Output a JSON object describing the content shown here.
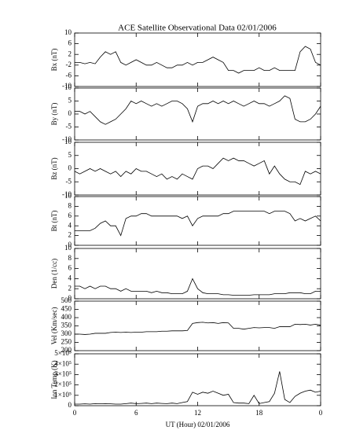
{
  "chart_data": [
    {
      "type": "line",
      "title": "ACE Satellite Observational Data   02/01/2006",
      "ylabel": "Bx (nT)",
      "color": "#000000",
      "x": [
        0,
        0.5,
        1,
        1.5,
        2,
        2.5,
        3,
        3.5,
        4,
        4.5,
        5,
        5.5,
        6,
        6.5,
        7,
        7.5,
        8,
        8.5,
        9,
        9.5,
        10,
        10.5,
        11,
        11.5,
        12,
        12.5,
        13,
        13.5,
        14,
        14.5,
        15,
        15.5,
        16,
        16.5,
        17,
        17.5,
        18,
        18.5,
        19,
        19.5,
        20,
        20.5,
        21,
        21.5,
        22,
        22.5,
        23,
        23.5,
        24
      ],
      "values": [
        -1,
        -1,
        -1.5,
        -1,
        -1.5,
        1,
        3,
        2,
        3,
        -1,
        -2,
        -1,
        0,
        -1,
        -2,
        -2,
        -1,
        -2,
        -3,
        -3,
        -2,
        -2,
        -1,
        -2,
        -1,
        -1,
        0,
        1,
        0,
        -1,
        -4,
        -4,
        -5,
        -4,
        -4,
        -4,
        -3,
        -4,
        -4,
        -3,
        -4,
        -4,
        -4,
        -4,
        3,
        5,
        4,
        -1,
        -2
      ],
      "ylim": [
        -10,
        10
      ],
      "yticks": [
        -10,
        -6,
        -2,
        2,
        6,
        10
      ]
    },
    {
      "type": "line",
      "ylabel": "By (nT)",
      "color": "#000000",
      "x": [
        0,
        0.5,
        1,
        1.5,
        2,
        2.5,
        3,
        3.5,
        4,
        4.5,
        5,
        5.5,
        6,
        6.5,
        7,
        7.5,
        8,
        8.5,
        9,
        9.5,
        10,
        10.5,
        11,
        11.5,
        12,
        12.5,
        13,
        13.5,
        14,
        14.5,
        15,
        15.5,
        16,
        16.5,
        17,
        17.5,
        18,
        18.5,
        19,
        19.5,
        20,
        20.5,
        21,
        21.5,
        22,
        22.5,
        23,
        23.5,
        24
      ],
      "values": [
        1,
        1,
        0,
        1,
        -1,
        -3,
        -4,
        -3,
        -2,
        0,
        2,
        5,
        4,
        5,
        4,
        3,
        4,
        3,
        4,
        5,
        5,
        4,
        2,
        -3,
        3,
        4,
        4,
        5,
        4,
        5,
        4,
        5,
        4,
        3,
        4,
        5,
        4,
        4,
        3,
        4,
        5,
        7,
        6,
        -2,
        -3,
        -3,
        -2,
        0,
        3
      ],
      "ylim": [
        -10,
        10
      ],
      "yticks": [
        -10,
        -5,
        0,
        5,
        10
      ]
    },
    {
      "type": "line",
      "ylabel": "Bz (nT)",
      "color": "#000000",
      "x": [
        0,
        0.5,
        1,
        1.5,
        2,
        2.5,
        3,
        3.5,
        4,
        4.5,
        5,
        5.5,
        6,
        6.5,
        7,
        7.5,
        8,
        8.5,
        9,
        9.5,
        10,
        10.5,
        11,
        11.5,
        12,
        12.5,
        13,
        13.5,
        14,
        14.5,
        15,
        15.5,
        16,
        16.5,
        17,
        17.5,
        18,
        18.5,
        19,
        19.5,
        20,
        20.5,
        21,
        21.5,
        22,
        22.5,
        23,
        23.5,
        24
      ],
      "values": [
        -1,
        -2,
        -1,
        0,
        -1,
        0,
        -1,
        -2,
        -1,
        -3,
        -1,
        -2,
        0,
        -1,
        -1,
        -2,
        -3,
        -2,
        -4,
        -3,
        -4,
        -2,
        -3,
        -4,
        0,
        1,
        1,
        0,
        2,
        4,
        3,
        4,
        3,
        3,
        2,
        1,
        2,
        3,
        -2,
        1,
        -2,
        -4,
        -5,
        -5,
        -6,
        -1,
        -2,
        -1,
        -2
      ],
      "ylim": [
        -10,
        10
      ],
      "yticks": [
        -10,
        -5,
        0,
        5,
        10
      ]
    },
    {
      "type": "line",
      "ylabel": "Bt (nT)",
      "color": "#000000",
      "x": [
        0,
        0.5,
        1,
        1.5,
        2,
        2.5,
        3,
        3.5,
        4,
        4.5,
        5,
        5.5,
        6,
        6.5,
        7,
        7.5,
        8,
        8.5,
        9,
        9.5,
        10,
        10.5,
        11,
        11.5,
        12,
        12.5,
        13,
        13.5,
        14,
        14.5,
        15,
        15.5,
        16,
        16.5,
        17,
        17.5,
        18,
        18.5,
        19,
        19.5,
        20,
        20.5,
        21,
        21.5,
        22,
        22.5,
        23,
        23.5,
        24
      ],
      "values": [
        3,
        3,
        3,
        3,
        3.5,
        4.5,
        5,
        4,
        4,
        2,
        5.5,
        6,
        6,
        6.5,
        6.5,
        6,
        6,
        6,
        6,
        6,
        6,
        5.5,
        6,
        4,
        5.5,
        6,
        6,
        6,
        6,
        6.5,
        6.5,
        7,
        7,
        7,
        7,
        7,
        7,
        7,
        6.5,
        7,
        7,
        7,
        6.5,
        5,
        5.5,
        5,
        5.5,
        6,
        5
      ],
      "ylim": [
        0,
        10
      ],
      "yticks": [
        0,
        2,
        4,
        6,
        8,
        10
      ]
    },
    {
      "type": "line",
      "ylabel": "Den (1/cc)",
      "color": "#000000",
      "x": [
        0,
        0.5,
        1,
        1.5,
        2,
        2.5,
        3,
        3.5,
        4,
        4.5,
        5,
        5.5,
        6,
        6.5,
        7,
        7.5,
        8,
        8.5,
        9,
        9.5,
        10,
        10.5,
        11,
        11.5,
        12,
        12.5,
        13,
        13.5,
        14,
        14.5,
        15,
        15.5,
        16,
        16.5,
        17,
        17.5,
        18,
        18.5,
        19,
        19.5,
        20,
        20.5,
        21,
        21.5,
        22,
        22.5,
        23,
        23.5,
        24
      ],
      "values": [
        2.5,
        2.5,
        2,
        2.5,
        2,
        2.5,
        2.5,
        2,
        2,
        1.5,
        2,
        1.5,
        1.5,
        1.5,
        1.5,
        1.2,
        1.5,
        1.2,
        1.2,
        1,
        1,
        1,
        1.5,
        4,
        2,
        1.2,
        1,
        1,
        1,
        0.8,
        0.8,
        0.7,
        0.7,
        0.7,
        0.7,
        0.8,
        0.8,
        0.8,
        0.8,
        1,
        1,
        1,
        1.2,
        1.2,
        1.2,
        1,
        1,
        1.5,
        1.5
      ],
      "ylim": [
        0,
        10
      ],
      "yticks": [
        0,
        2,
        4,
        6,
        8,
        10
      ]
    },
    {
      "type": "line",
      "ylabel": "Vel (Km/sec)",
      "color": "#000000",
      "x": [
        0,
        0.5,
        1,
        1.5,
        2,
        2.5,
        3,
        3.5,
        4,
        4.5,
        5,
        5.5,
        6,
        6.5,
        7,
        7.5,
        8,
        8.5,
        9,
        9.5,
        10,
        10.5,
        11,
        11.5,
        12,
        12.5,
        13,
        13.5,
        14,
        14.5,
        15,
        15.5,
        16,
        16.5,
        17,
        17.5,
        18,
        18.5,
        19,
        19.5,
        20,
        20.5,
        21,
        21.5,
        22,
        22.5,
        23,
        23.5,
        24
      ],
      "values": [
        300,
        300,
        298,
        300,
        305,
        305,
        305,
        310,
        312,
        310,
        312,
        310,
        312,
        312,
        315,
        315,
        315,
        318,
        318,
        320,
        320,
        320,
        322,
        365,
        370,
        372,
        368,
        370,
        365,
        370,
        368,
        335,
        335,
        330,
        335,
        340,
        338,
        340,
        340,
        335,
        345,
        345,
        345,
        360,
        358,
        360,
        355,
        360,
        355
      ],
      "ylim": [
        200,
        500
      ],
      "yticks": [
        200,
        250,
        300,
        350,
        400,
        450,
        500
      ]
    },
    {
      "type": "line",
      "ylabel": "Ion Temp (K)",
      "xlabel": "UT (Hour)   02/01/2006",
      "color": "#000000",
      "x": [
        0,
        0.5,
        1,
        1.5,
        2,
        2.5,
        3,
        3.5,
        4,
        4.5,
        5,
        5.5,
        6,
        6.5,
        7,
        7.5,
        8,
        8.5,
        9,
        9.5,
        10,
        10.5,
        11,
        11.5,
        12,
        12.5,
        13,
        13.5,
        14,
        14.5,
        15,
        15.5,
        16,
        16.5,
        17,
        17.5,
        18,
        18.5,
        19,
        19.5,
        20,
        20.5,
        21,
        21.5,
        22,
        22.5,
        23,
        23.5,
        24
      ],
      "values": [
        15000,
        15000,
        18000,
        15000,
        20000,
        18000,
        20000,
        18000,
        15000,
        15000,
        20000,
        25000,
        20000,
        22000,
        25000,
        20000,
        25000,
        22000,
        20000,
        25000,
        20000,
        30000,
        40000,
        130000,
        110000,
        130000,
        120000,
        140000,
        120000,
        100000,
        110000,
        30000,
        25000,
        25000,
        20000,
        100000,
        20000,
        30000,
        40000,
        120000,
        330000,
        60000,
        30000,
        90000,
        120000,
        140000,
        150000,
        130000,
        140000
      ],
      "ylim": [
        0,
        500000
      ],
      "yticks": [
        0,
        {
          "value": 100000,
          "label": "1×10⁵"
        },
        {
          "value": 200000,
          "label": "2×10⁵"
        },
        {
          "value": 300000,
          "label": "3×10⁵"
        },
        {
          "value": 400000,
          "label": "4×10⁵"
        },
        {
          "value": 500000,
          "label": "5×10⁵"
        }
      ],
      "xlim": [
        0,
        24
      ],
      "xticks": [
        0,
        6,
        12,
        18,
        {
          "value": 24,
          "label": "0"
        }
      ]
    }
  ]
}
